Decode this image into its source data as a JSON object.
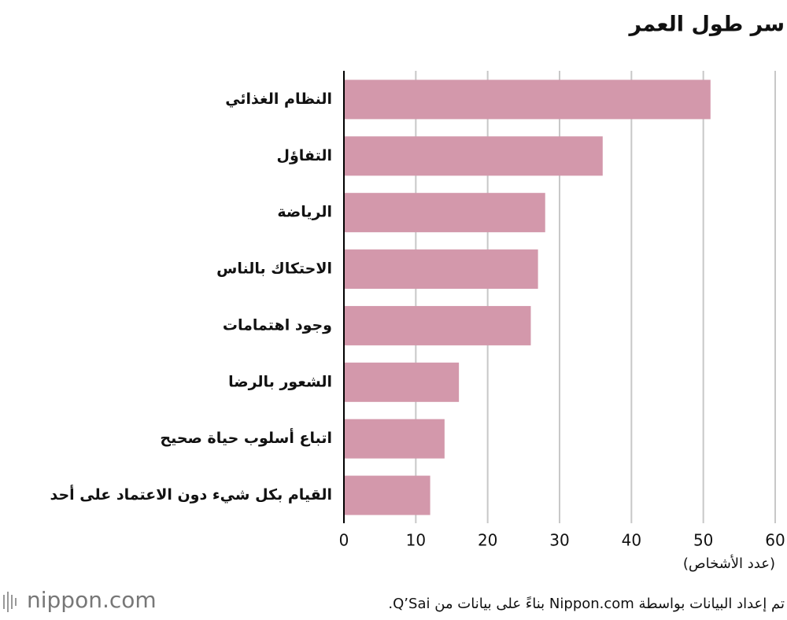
{
  "chart_data": {
    "type": "bar",
    "orientation": "horizontal",
    "title": "سر طول العمر",
    "categories": [
      "النظام الغذائي",
      "التفاؤل",
      "الرياضة",
      "الاحتكاك بالناس",
      "وجود اهتمامات",
      "الشعور بالرضا",
      "اتباع أسلوب حياة صحيح",
      "القيام بكل شيء دون الاعتماد على أحد"
    ],
    "values": [
      51,
      36,
      28,
      27,
      26,
      16,
      14,
      12
    ],
    "color": "#d398ab",
    "xlim": [
      0,
      60
    ],
    "xticks": [
      0,
      10,
      20,
      30,
      40,
      50,
      60
    ],
    "grid": true,
    "x_label": "(عدد الأشخاص)",
    "source": "تم إعداد البيانات بواسطة Nippon.com بناءً على بيانات من Q’Sai.",
    "logo": "nippon.com"
  }
}
